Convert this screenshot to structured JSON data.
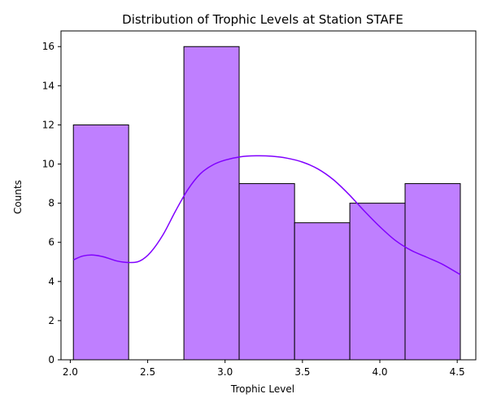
{
  "chart_data": {
    "type": "bar",
    "title": "Distribution of Trophic Levels at Station STAFE",
    "xlabel": "Trophic Level",
    "ylabel": "Counts",
    "xlim": [
      1.94,
      4.62
    ],
    "ylim": [
      0,
      16.8
    ],
    "x_ticks": [
      "2.0",
      "2.5",
      "3.0",
      "3.5",
      "4.0",
      "4.5"
    ],
    "y_ticks": [
      "0",
      "2",
      "4",
      "6",
      "8",
      "10",
      "12",
      "14",
      "16"
    ],
    "grid": false,
    "bins": [
      {
        "x0": 2.02,
        "x1": 2.377,
        "count": 12
      },
      {
        "x0": 2.377,
        "x1": 2.734,
        "count": 0
      },
      {
        "x0": 2.734,
        "x1": 3.091,
        "count": 16
      },
      {
        "x0": 3.091,
        "x1": 3.449,
        "count": 9
      },
      {
        "x0": 3.449,
        "x1": 3.806,
        "count": 7
      },
      {
        "x0": 3.806,
        "x1": 4.163,
        "count": 8
      },
      {
        "x0": 4.163,
        "x1": 4.52,
        "count": 9
      }
    ],
    "kde": {
      "x": [
        2.02,
        2.08,
        2.15,
        2.22,
        2.3,
        2.38,
        2.45,
        2.52,
        2.6,
        2.68,
        2.76,
        2.84,
        2.92,
        3.0,
        3.1,
        3.2,
        3.3,
        3.4,
        3.5,
        3.6,
        3.7,
        3.8,
        3.9,
        4.0,
        4.1,
        4.2,
        4.3,
        4.4,
        4.52
      ],
      "y": [
        5.1,
        5.3,
        5.35,
        5.25,
        5.05,
        4.97,
        5.05,
        5.5,
        6.4,
        7.6,
        8.7,
        9.5,
        9.95,
        10.2,
        10.37,
        10.42,
        10.4,
        10.3,
        10.1,
        9.75,
        9.2,
        8.45,
        7.6,
        6.8,
        6.1,
        5.6,
        5.25,
        4.9,
        4.35
      ]
    },
    "colors": {
      "bar_fill": "#bf7fff",
      "bar_edge": "#000000",
      "kde_line": "#8000ff"
    }
  }
}
